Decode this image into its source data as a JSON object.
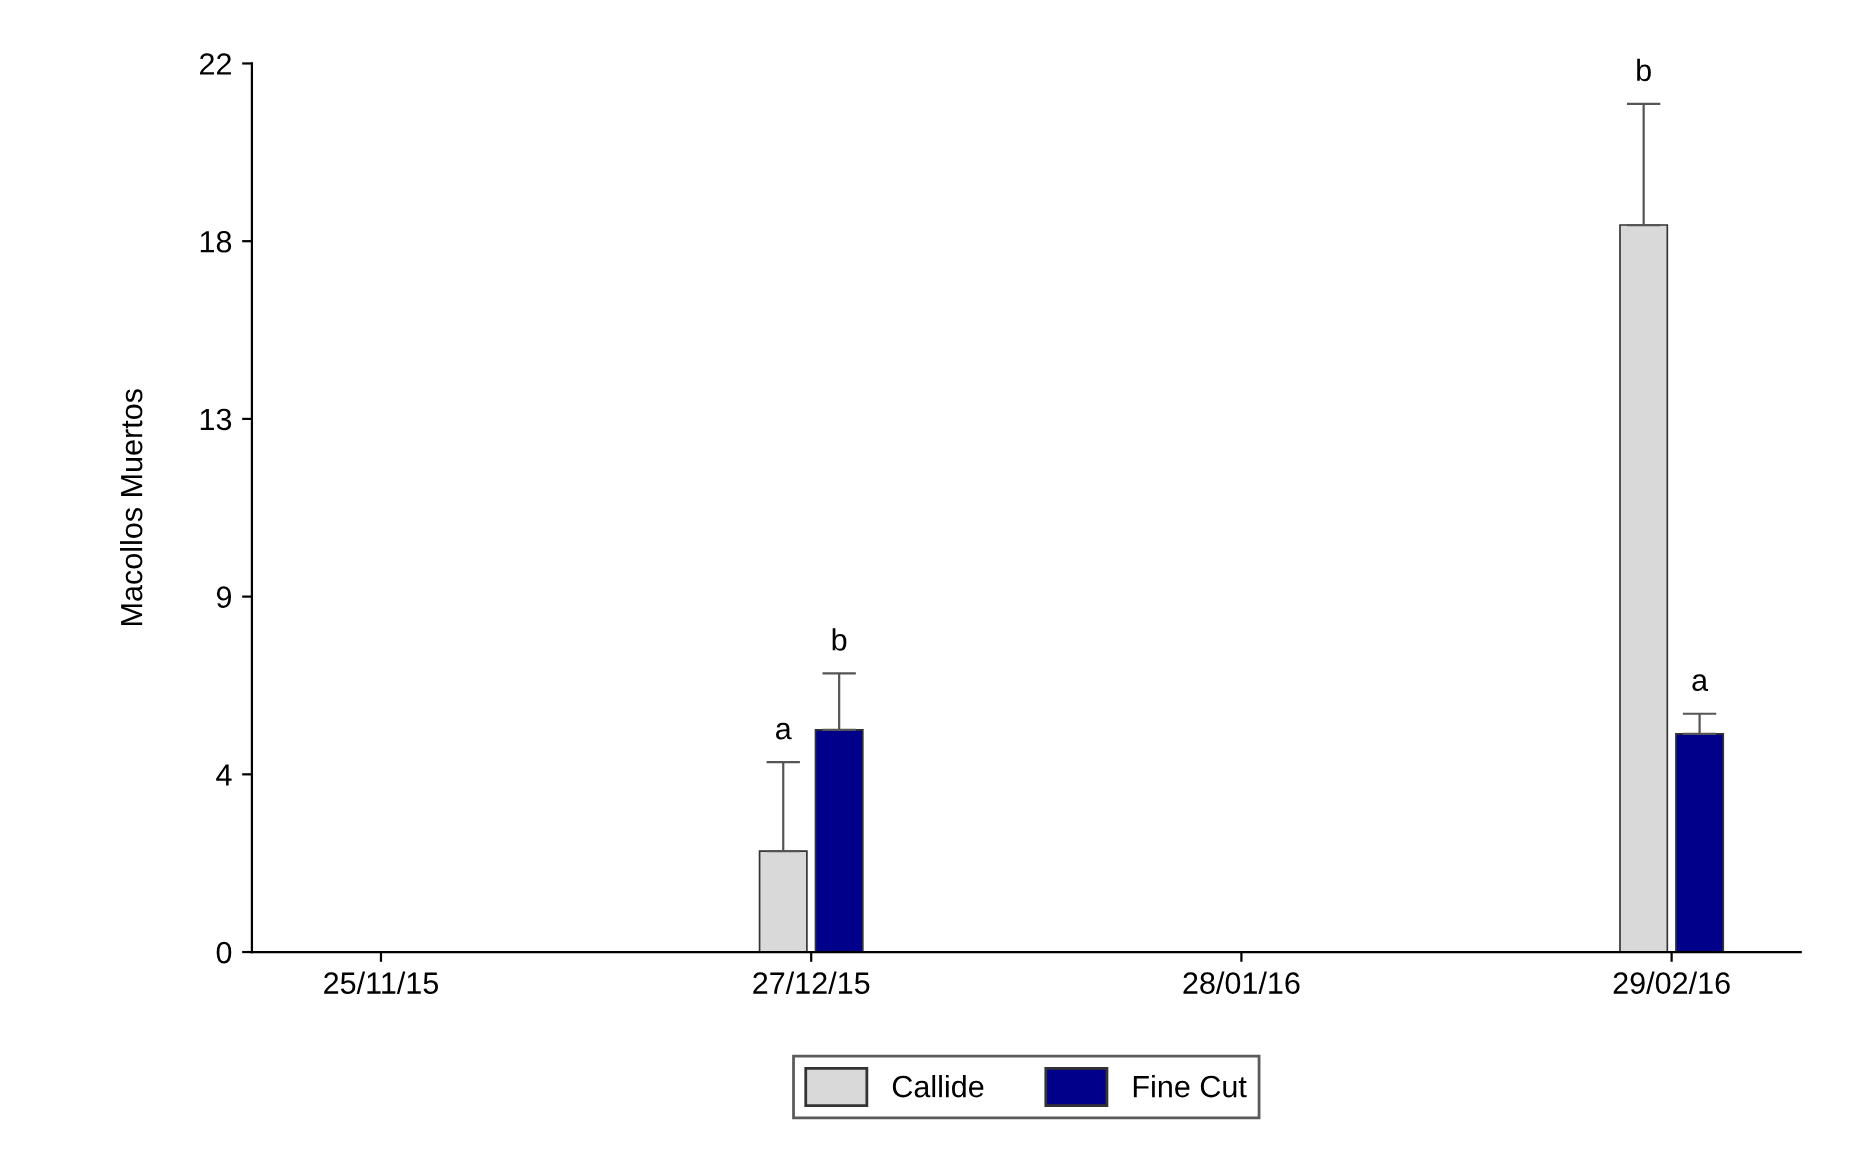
{
  "chart_data": {
    "type": "bar",
    "ylabel": "Macollos Muertos",
    "categories": [
      "25/11/15",
      "27/12/15",
      "28/01/16",
      "29/02/16"
    ],
    "series": [
      {
        "name": "Callide",
        "color": "#d9d9d9",
        "values": [
          0,
          2.5,
          null,
          18.0
        ],
        "errors": [
          null,
          [
            2.5,
            4.7
          ],
          null,
          [
            18.0,
            21.0
          ]
        ]
      },
      {
        "name": "Fine Cut",
        "color": "#00008b",
        "values": [
          0,
          5.5,
          null,
          5.4
        ],
        "errors": [
          null,
          [
            5.5,
            6.9
          ],
          null,
          [
            5.4,
            5.9
          ]
        ]
      }
    ],
    "ylim": [
      0,
      22
    ],
    "yticks": [
      0,
      {
        "value": 4.4,
        "label": "4"
      },
      {
        "value": 8.8,
        "label": "9"
      },
      {
        "value": 13.2,
        "label": "13"
      },
      {
        "value": 17.6,
        "label": "18"
      },
      22
    ],
    "annotations": [
      "a",
      "b",
      "b",
      "a"
    ],
    "grid": false,
    "legend": "bottom"
  }
}
